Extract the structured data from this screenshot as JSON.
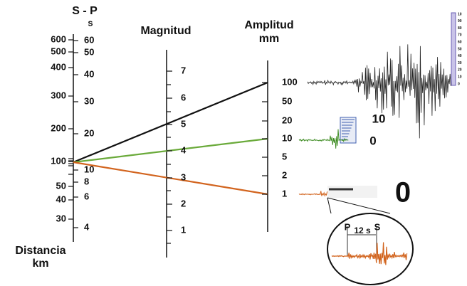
{
  "headers": {
    "sp": "S - P",
    "sp_unit": "s",
    "magnitude": "Magnitud",
    "amplitude": "Amplitud",
    "amplitude_unit": "mm",
    "distance": "Distancia",
    "distance_unit": "km"
  },
  "distance_labels": [
    "600",
    "500",
    "400",
    "300",
    "200",
    "100",
    "50",
    "40",
    "30"
  ],
  "sp_labels": [
    "60",
    "50",
    "40",
    "30",
    "20",
    "10",
    "8",
    "6",
    "4"
  ],
  "magnitude_labels": [
    "7",
    "6",
    "5",
    "4",
    "3",
    "2",
    "1"
  ],
  "amplitude_labels": [
    "100",
    "50",
    "20",
    "10",
    "5",
    "2",
    "1"
  ],
  "seismograms": {
    "medium_top": "10",
    "medium_bottom": "0",
    "small": "0",
    "inset_p": "P",
    "inset_interval": "12 s",
    "inset_s": "S"
  },
  "gauge_labels": [
    "10",
    "90",
    "80",
    "70",
    "60",
    "50",
    "40",
    "30",
    "20",
    "10",
    "0"
  ]
}
